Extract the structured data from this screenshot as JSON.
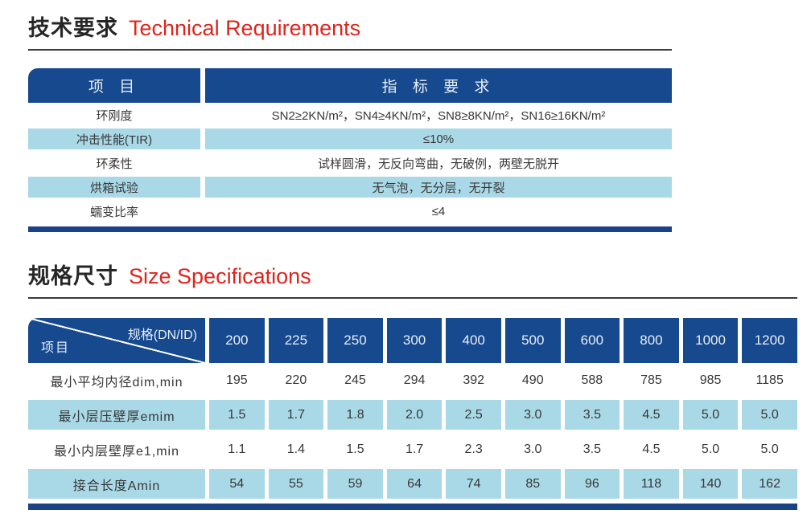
{
  "colors": {
    "header_blue": "#17498e",
    "row_light_blue": "#a9d9e7",
    "bottom_bar_navy": "#1a4385",
    "title_red": "#e0241c"
  },
  "tech_section": {
    "title_zh": "技术要求",
    "title_en": "Technical Requirements",
    "table": {
      "header": {
        "item": "项 目",
        "requirement": "指 标 要 求"
      },
      "rows": [
        {
          "item": "环刚度",
          "value": "SN2≥2KN/m²，SN4≥4KN/m²，SN8≥8KN/m²，SN16≥16KN/m²",
          "shaded": false
        },
        {
          "item": "冲击性能(TIR)",
          "value": "≤10%",
          "shaded": true
        },
        {
          "item": "环柔性",
          "value": "试样圆滑，无反向弯曲，无破例，两壁无脱开",
          "shaded": false
        },
        {
          "item": "烘箱试验",
          "value": "无气泡，无分层，无开裂",
          "shaded": true
        },
        {
          "item": "蠕变比率",
          "value": "≤4",
          "shaded": false
        }
      ]
    }
  },
  "size_section": {
    "title_zh": "规格尺寸",
    "title_en": "Size Specifications",
    "table": {
      "corner": {
        "top_right": "规格(DN/ID)",
        "bottom_left": "项目"
      },
      "columns": [
        "200",
        "225",
        "250",
        "300",
        "400",
        "500",
        "600",
        "800",
        "1000",
        "1200"
      ],
      "rows": [
        {
          "item": "最小平均内径dim,min",
          "values": [
            "195",
            "220",
            "245",
            "294",
            "392",
            "490",
            "588",
            "785",
            "985",
            "1185"
          ],
          "shaded": false
        },
        {
          "item": "最小层压壁厚emim",
          "values": [
            "1.5",
            "1.7",
            "1.8",
            "2.0",
            "2.5",
            "3.0",
            "3.5",
            "4.5",
            "5.0",
            "5.0"
          ],
          "shaded": true
        },
        {
          "item": "最小内层壁厚e1,min",
          "values": [
            "1.1",
            "1.4",
            "1.5",
            "1.7",
            "2.3",
            "3.0",
            "3.5",
            "4.5",
            "5.0",
            "5.0"
          ],
          "shaded": false
        },
        {
          "item": "接合长度Amin",
          "values": [
            "54",
            "55",
            "59",
            "64",
            "74",
            "85",
            "96",
            "118",
            "140",
            "162"
          ],
          "shaded": true
        }
      ]
    }
  }
}
